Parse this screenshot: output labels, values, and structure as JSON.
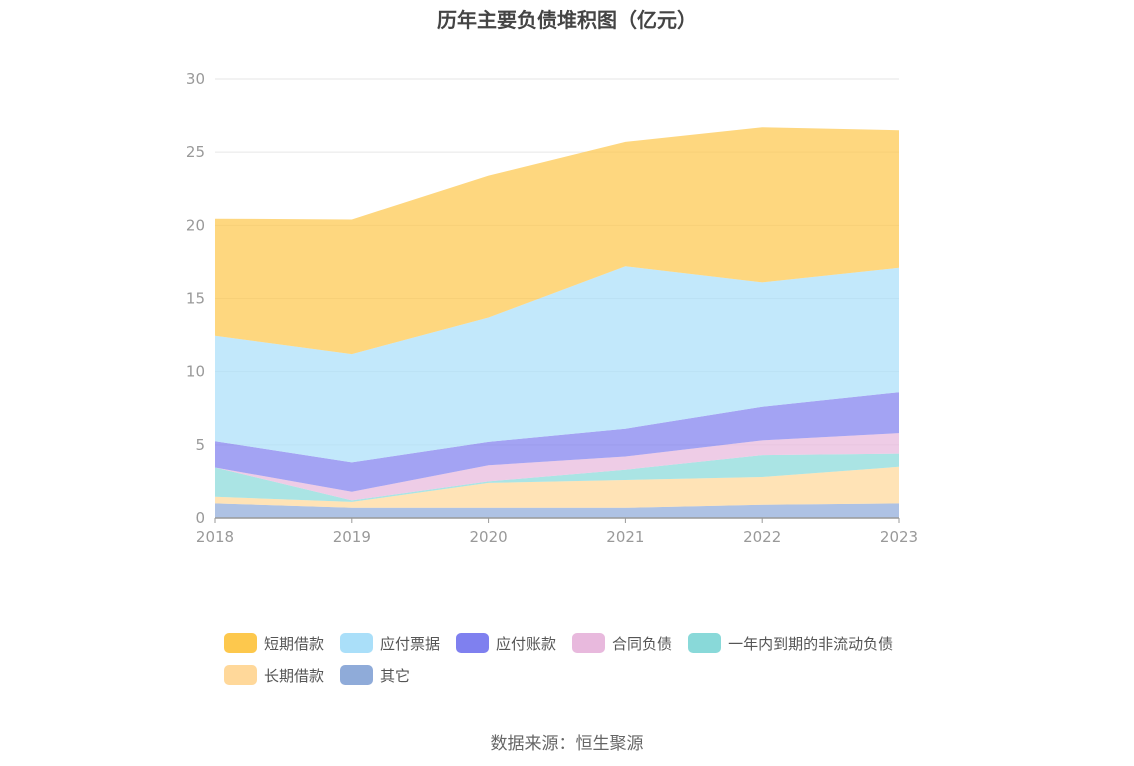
{
  "chart_data": {
    "type": "area",
    "stacked": true,
    "title": "历年主要负债堆积图（亿元）",
    "x": [
      "2018",
      "2019",
      "2020",
      "2021",
      "2022",
      "2023"
    ],
    "ylim": [
      0,
      30
    ],
    "yticks": [
      0,
      5,
      10,
      15,
      20,
      25,
      30
    ],
    "grid": true,
    "legend_position": "bottom",
    "source": "数据来源：恒生聚源",
    "series": [
      {
        "name": "其它",
        "color": "#8fabd9",
        "values": [
          1.0,
          0.7,
          0.7,
          0.7,
          0.9,
          1.0
        ]
      },
      {
        "name": "长期借款",
        "color": "#ffd89a",
        "values": [
          0.45,
          0.4,
          1.7,
          1.9,
          1.9,
          2.5
        ]
      },
      {
        "name": "一年内到期的非流动负债",
        "color": "#89d9d9",
        "values": [
          2.0,
          0.1,
          0.1,
          0.7,
          1.5,
          0.9
        ]
      },
      {
        "name": "合同负债",
        "color": "#e8b9dd",
        "values": [
          0.0,
          0.6,
          1.1,
          0.9,
          1.0,
          1.4
        ]
      },
      {
        "name": "应付账款",
        "color": "#7f80ef",
        "values": [
          1.8,
          2.0,
          1.6,
          1.9,
          2.3,
          2.8
        ]
      },
      {
        "name": "应付票据",
        "color": "#aadff9",
        "values": [
          7.2,
          7.4,
          8.5,
          11.1,
          8.5,
          8.5
        ]
      },
      {
        "name": "短期借款",
        "color": "#fdc84d",
        "values": [
          8.0,
          9.2,
          9.7,
          8.5,
          10.6,
          9.4
        ]
      }
    ],
    "legend": [
      {
        "label": "短期借款",
        "color": "#fdc84d"
      },
      {
        "label": "应付票据",
        "color": "#aadff9"
      },
      {
        "label": "应付账款",
        "color": "#7f80ef"
      },
      {
        "label": "合同负债",
        "color": "#e8b9dd"
      },
      {
        "label": "一年内到期的非流动负债",
        "color": "#89d9d9"
      },
      {
        "label": "长期借款",
        "color": "#ffd89a"
      },
      {
        "label": "其它",
        "color": "#8fabd9"
      }
    ]
  }
}
